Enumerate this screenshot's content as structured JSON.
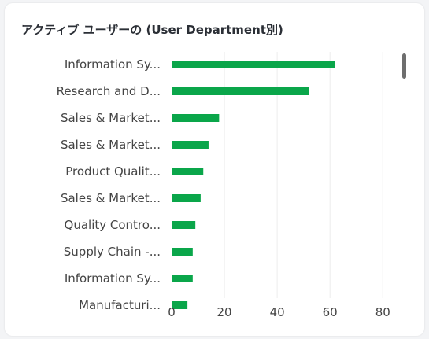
{
  "card": {
    "title": "アクティブ ユーザーの (User Department別)"
  },
  "chart_data": {
    "type": "bar",
    "orientation": "horizontal",
    "title": "アクティブ ユーザーの (User Department別)",
    "categories": [
      "Information Sy...",
      "Research and D...",
      "Sales & Market...",
      "Sales & Market...",
      "Product Qualit...",
      "Sales & Market...",
      "Quality Contro...",
      "Supply Chain -...",
      "Information Sy...",
      "Manufacturi..."
    ],
    "values": [
      62,
      52,
      18,
      14,
      12,
      11,
      9,
      8,
      8,
      6
    ],
    "xlim": [
      0,
      85
    ],
    "xticks": [
      0,
      20,
      40,
      60,
      80
    ],
    "grid": true,
    "bar_color": "#0aa64a",
    "grid_color": "#ececec",
    "label_color": "#444444"
  }
}
